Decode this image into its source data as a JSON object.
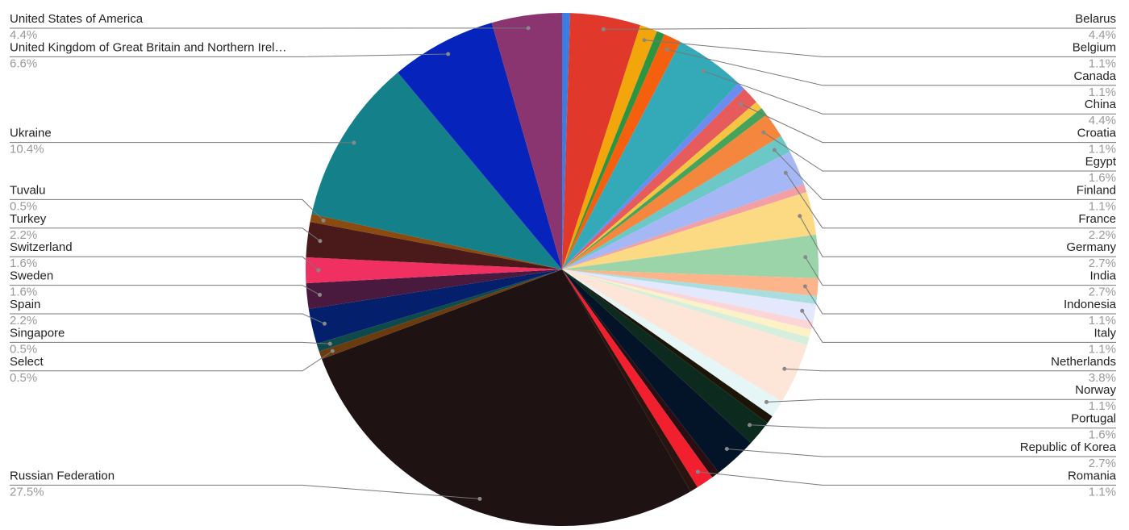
{
  "chart_data": {
    "type": "pie",
    "categories": [
      null,
      "Belarus",
      "Belgium",
      null,
      "Canada",
      "China",
      null,
      "Croatia",
      null,
      null,
      "Egypt",
      "Finland",
      "France",
      null,
      "Germany",
      "India",
      "Indonesia",
      null,
      "Italy",
      null,
      null,
      null,
      "Netherlands",
      "Norway",
      null,
      "Portugal",
      "Republic of Korea",
      null,
      "Romania",
      null,
      "Russian Federation",
      "Select",
      "Singapore",
      "Spain",
      "Sweden",
      "Switzerland",
      "Turkey",
      "Tuvalu",
      "Ukraine",
      "United Kingdom of Great Britain and Northern Irel…",
      "United States of America"
    ],
    "values": [
      0.5,
      4.4,
      1.1,
      0.5,
      1.1,
      4.4,
      0.5,
      1.1,
      0.5,
      0.5,
      1.6,
      1.1,
      2.2,
      0.5,
      2.7,
      2.7,
      1.1,
      0.5,
      1.1,
      0.5,
      0.5,
      0.5,
      3.8,
      1.1,
      0.5,
      1.6,
      2.7,
      0.5,
      1.1,
      0.5,
      27.5,
      0.5,
      0.5,
      2.2,
      1.6,
      1.6,
      2.2,
      0.5,
      10.4,
      6.6,
      4.4
    ],
    "value_labels": [
      null,
      "4.4%",
      "1.1%",
      null,
      "1.1%",
      "4.4%",
      null,
      "1.1%",
      null,
      null,
      "1.6%",
      "1.1%",
      "2.2%",
      null,
      "2.7%",
      "2.7%",
      "1.1%",
      null,
      "1.1%",
      null,
      null,
      null,
      "3.8%",
      "1.1%",
      null,
      "1.6%",
      "2.7%",
      null,
      "1.1%",
      null,
      "27.5%",
      "0.5%",
      "0.5%",
      "2.2%",
      "1.6%",
      "1.6%",
      "2.2%",
      "0.5%",
      "10.4%",
      "6.6%",
      "4.4%"
    ],
    "colors": [
      "#3d7be0",
      "#e0382b",
      "#f2a60c",
      "#2e9440",
      "#f5600f",
      "#34a9b7",
      "#6b8cf0",
      "#e65c5c",
      "#f5c542",
      "#46a35a",
      "#f5863d",
      "#6cc7c7",
      "#a5b8f5",
      "#f2a0a5",
      "#fcd983",
      "#9bd4a8",
      "#fcb58a",
      "#a8dede",
      "#e3e8fc",
      "#fbd5d8",
      "#fdf1c6",
      "#d6eedc",
      "#fde6d8",
      "#e6f6f6",
      "#1c1407",
      "#0c2a1e",
      "#041428",
      "#2a0e14",
      "#f2202e",
      "#2a1410",
      "#1f1212",
      "#6b3a0e",
      "#0f4a4a",
      "#041f6b",
      "#4a1a3e",
      "#f03060",
      "#4a1a1a",
      "#8a4a10",
      "#14808a",
      "#0624bc",
      "#8a3470"
    ]
  }
}
